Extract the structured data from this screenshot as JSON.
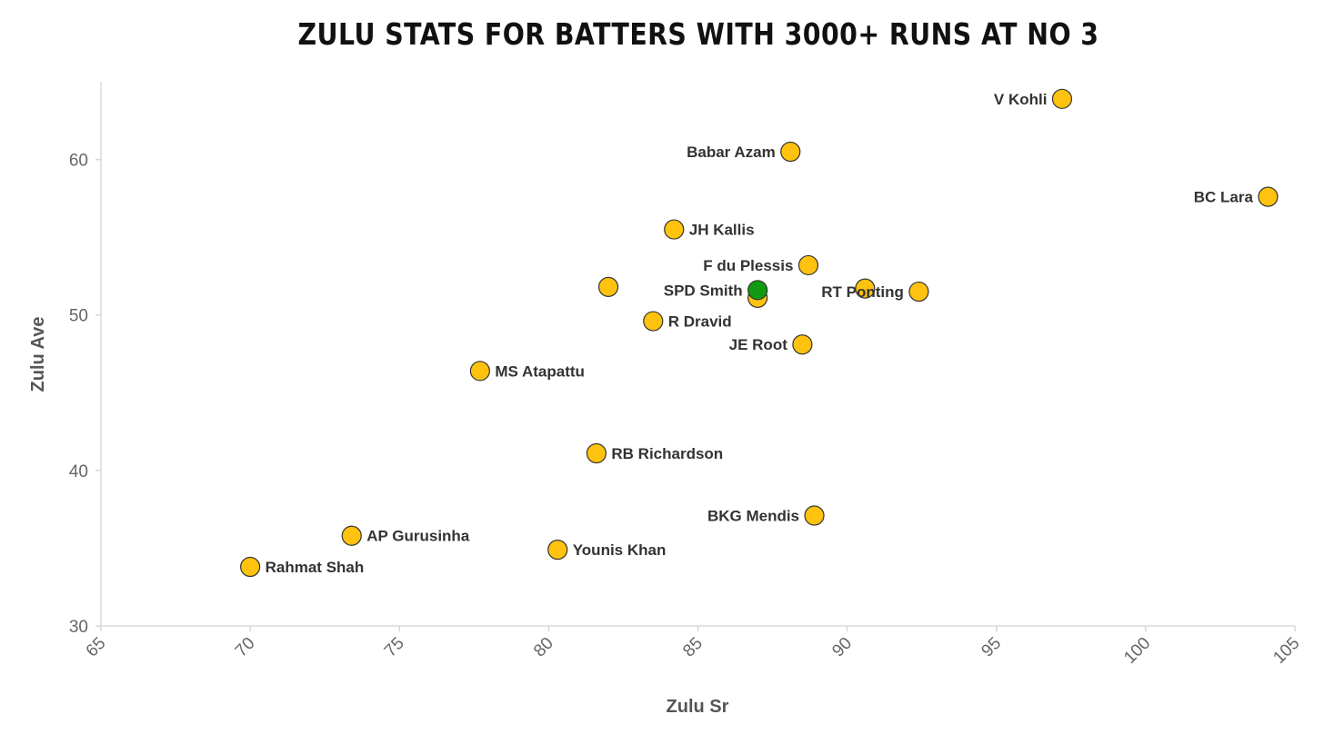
{
  "chart_data": {
    "type": "scatter",
    "title": "Zulu stats for batters with 3000+ runs at No 3",
    "xlabel": "Zulu Sr",
    "ylabel": "Zulu Ave",
    "xlim": [
      65,
      105
    ],
    "ylim": [
      30,
      65
    ],
    "x_ticks": [
      "65",
      "70",
      "75",
      "80",
      "85",
      "90",
      "95",
      "100",
      "105"
    ],
    "y_ticks": [
      "30",
      "40",
      "50",
      "60"
    ],
    "grid": false,
    "colors": {
      "default": "#FFC20E",
      "highlight": "#119911",
      "stroke": "#333333"
    },
    "points": [
      {
        "name": "V Kohli",
        "x": 97.2,
        "y": 63.9,
        "label_side": "left"
      },
      {
        "name": "Babar Azam",
        "x": 88.1,
        "y": 60.5,
        "label_side": "left"
      },
      {
        "name": "BC Lara",
        "x": 104.1,
        "y": 57.6,
        "label_side": "left"
      },
      {
        "name": "JH Kallis",
        "x": 84.2,
        "y": 55.5,
        "label_side": "right"
      },
      {
        "name": "F du Plessis",
        "x": 88.7,
        "y": 53.2,
        "label_side": "left"
      },
      {
        "name": "",
        "x": 82.0,
        "y": 51.8,
        "label_side": "none"
      },
      {
        "name": "",
        "x": 90.6,
        "y": 51.7,
        "label_side": "none"
      },
      {
        "name": "RT Ponting",
        "x": 92.4,
        "y": 51.5,
        "label_side": "left"
      },
      {
        "name": "",
        "x": 87.0,
        "y": 51.1,
        "label_side": "none"
      },
      {
        "name": "SPD Smith",
        "x": 87.0,
        "y": 51.6,
        "label_side": "left",
        "highlight": true
      },
      {
        "name": "R Dravid",
        "x": 83.5,
        "y": 49.6,
        "label_side": "right"
      },
      {
        "name": "JE Root",
        "x": 88.5,
        "y": 48.1,
        "label_side": "left"
      },
      {
        "name": "MS Atapattu",
        "x": 77.7,
        "y": 46.4,
        "label_side": "right"
      },
      {
        "name": "RB Richardson",
        "x": 81.6,
        "y": 41.1,
        "label_side": "right"
      },
      {
        "name": "BKG Mendis",
        "x": 88.9,
        "y": 37.1,
        "label_side": "left"
      },
      {
        "name": "AP Gurusinha",
        "x": 73.4,
        "y": 35.8,
        "label_side": "right"
      },
      {
        "name": "Younis Khan",
        "x": 80.3,
        "y": 34.9,
        "label_side": "right"
      },
      {
        "name": "Rahmat Shah",
        "x": 70.0,
        "y": 33.8,
        "label_side": "right"
      }
    ]
  }
}
